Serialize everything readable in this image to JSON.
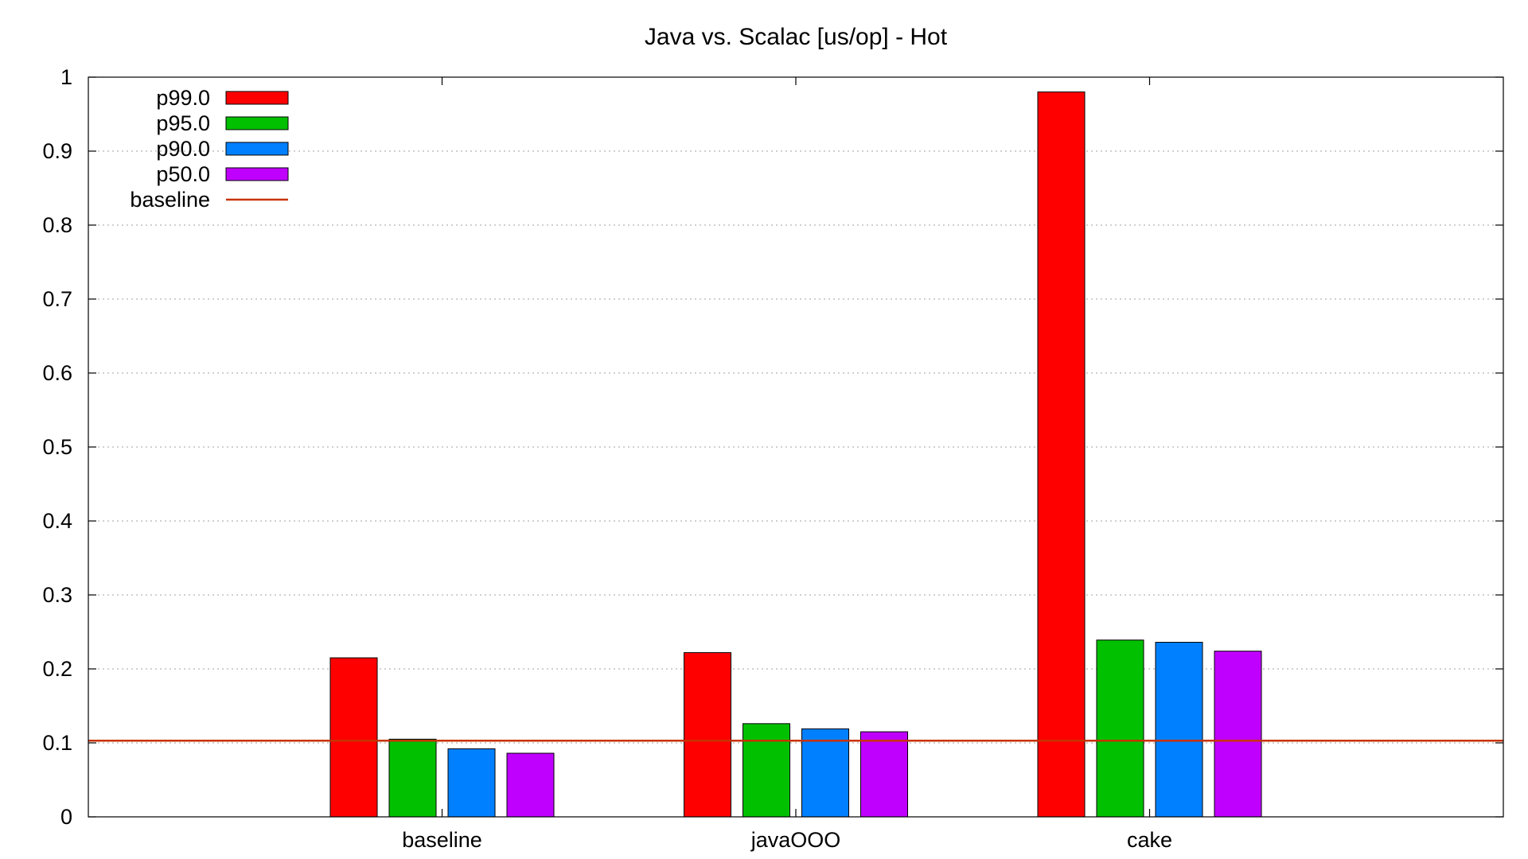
{
  "chart_data": {
    "type": "bar",
    "title": "Java vs. Scalac [us/op] - Hot",
    "xlabel": "",
    "ylabel": "",
    "ylim": [
      0,
      1
    ],
    "yticks": [
      0,
      0.1,
      0.2,
      0.3,
      0.4,
      0.5,
      0.6,
      0.7,
      0.8,
      0.9,
      1
    ],
    "grid": true,
    "legend_position": "top-left",
    "categories": [
      "baseline",
      "javaOOO",
      "cake"
    ],
    "series": [
      {
        "name": "p99.0",
        "color": "#ff0000",
        "values": [
          0.215,
          0.222,
          0.98
        ]
      },
      {
        "name": "p95.0",
        "color": "#00c000",
        "values": [
          0.105,
          0.126,
          0.239
        ]
      },
      {
        "name": "p90.0",
        "color": "#0080ff",
        "values": [
          0.092,
          0.119,
          0.236
        ]
      },
      {
        "name": "p50.0",
        "color": "#c000ff",
        "values": [
          0.086,
          0.115,
          0.224
        ]
      }
    ],
    "reference_line": {
      "name": "baseline",
      "value": 0.103,
      "color": "#c83200"
    }
  }
}
